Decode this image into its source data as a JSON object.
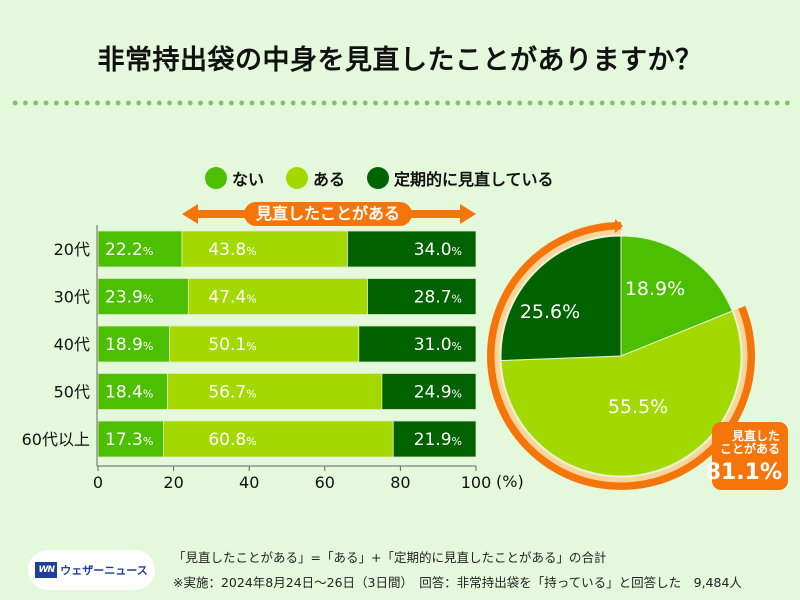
{
  "title": "非常持出袋の中身を見直したことがありますか？",
  "legend": [
    {
      "label": "ない",
      "color": "#4cbf00"
    },
    {
      "label": "ある",
      "color": "#a3d900"
    },
    {
      "label": "定期的に見直している",
      "color": "#006300"
    }
  ],
  "range_label": "見直したことがある",
  "chart_data": [
    {
      "type": "bar",
      "orientation": "horizontal-stacked",
      "categories": [
        "20代",
        "30代",
        "40代",
        "50代",
        "60代以上"
      ],
      "series": [
        {
          "name": "ない",
          "color": "#4cbf00",
          "values": [
            22.2,
            23.9,
            18.9,
            18.4,
            17.3
          ],
          "labels": [
            "22.2",
            "23.9",
            "18.9",
            "18.4",
            "17.3"
          ]
        },
        {
          "name": "ある",
          "color": "#a3d900",
          "values": [
            43.8,
            47.4,
            50.1,
            56.7,
            60.8
          ],
          "labels": [
            "43.8",
            "47.4",
            "50.1",
            "56.7",
            "60.8"
          ]
        },
        {
          "name": "定期的に見直している",
          "color": "#006300",
          "values": [
            34.0,
            28.7,
            31.0,
            24.9,
            21.9
          ],
          "labels": [
            "34.0",
            "28.7",
            "31.0",
            "24.9",
            "21.9"
          ]
        }
      ],
      "xlim": [
        0,
        100
      ],
      "xticks": [
        "0",
        "20",
        "40",
        "60",
        "80",
        "100"
      ],
      "xunit": "(%)",
      "value_suffix": "%"
    },
    {
      "type": "pie",
      "slices": [
        {
          "name": "ない",
          "value": 18.9,
          "label": "18.9%",
          "color": "#4cbf00"
        },
        {
          "name": "ある",
          "value": 55.5,
          "label": "55.5%",
          "color": "#a3d900"
        },
        {
          "name": "定期的に見直している",
          "value": 25.6,
          "label": "25.6%",
          "color": "#006300"
        }
      ],
      "callout": {
        "label": "見直した\nことがある",
        "label_line1": "見直した",
        "label_line2": "ことがある",
        "value": "81.1%"
      }
    }
  ],
  "accent_color": "#f6750b",
  "footer": {
    "logo_mark": "WN",
    "logo_name": "ウェザーニュース",
    "note1": "「見直したことがある」=「ある」+「定期的に見直したことがある」の合計",
    "note2": "※実施：2024年8月24日〜26日（3日間）　回答：非常持出袋を「持っている」と回答した　9,484人"
  }
}
